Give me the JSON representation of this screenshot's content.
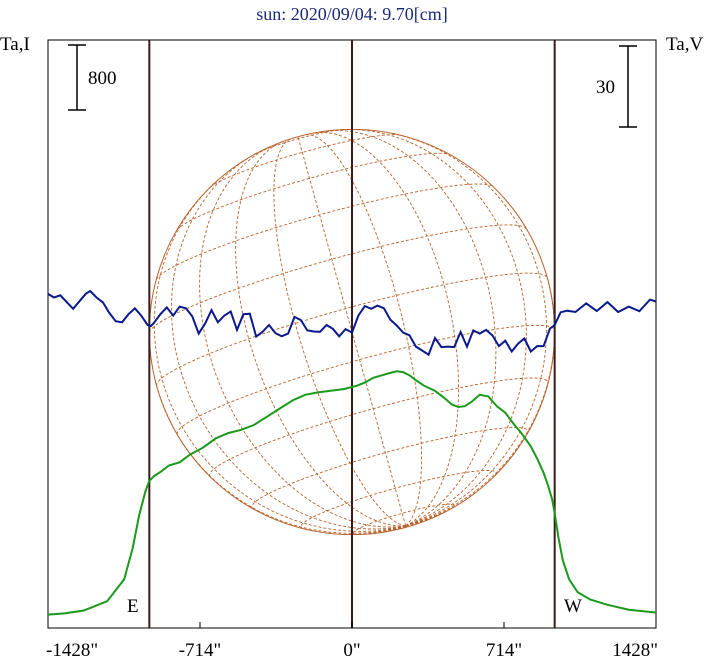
{
  "chart_data": {
    "type": "line",
    "title": "sun: 2020/09/04: 9.70[cm]",
    "y_left_label": "Ta,I",
    "y_right_label": "Ta,V",
    "left_scale_bar": "800",
    "right_scale_bar": "30",
    "east_label": "E",
    "west_label": "W",
    "xlim": [
      -1428,
      1428
    ],
    "x_ticks": [
      {
        "value": -1428,
        "label": "-1428\""
      },
      {
        "value": -714,
        "label": "-714\""
      },
      {
        "value": 0,
        "label": "0\""
      },
      {
        "value": 714,
        "label": "714\""
      },
      {
        "value": 1428,
        "label": "1428\""
      }
    ],
    "limb_markers": [
      -952,
      0,
      952
    ],
    "solar_disk_radius": 952,
    "colors": {
      "intensity": "#1a9a1a",
      "polarization": "#0a1a8c",
      "disk": "#b8622a",
      "markers": "#3a1a1a",
      "title": "#1a2a7a"
    },
    "series": [
      {
        "name": "",
        "axis": "left",
        "x": [
          -1428,
          -1350,
          -1260,
          -1150,
          -1070,
          -1030,
          -1000,
          -970,
          -952,
          -930,
          -900,
          -860,
          -810,
          -760,
          -700,
          -640,
          -580,
          -520,
          -460,
          -400,
          -340,
          -280,
          -220,
          -160,
          -100,
          -40,
          20,
          60,
          100,
          140,
          180,
          210,
          240,
          270,
          300,
          340,
          390,
          430,
          470,
          500,
          530,
          560,
          600,
          640,
          680,
          720,
          760,
          800,
          840,
          870,
          900,
          920,
          940,
          952,
          970,
          990,
          1020,
          1060,
          1120,
          1200,
          1300,
          1428
        ],
        "y": [
          10,
          40,
          110,
          340,
          880,
          1650,
          2450,
          3050,
          3300,
          3420,
          3520,
          3680,
          3760,
          3950,
          4120,
          4350,
          4480,
          4560,
          4680,
          4880,
          5080,
          5280,
          5420,
          5480,
          5520,
          5560,
          5640,
          5720,
          5840,
          5900,
          5960,
          6000,
          5980,
          5900,
          5780,
          5640,
          5520,
          5360,
          5180,
          5120,
          5140,
          5240,
          5420,
          5380,
          5140,
          4980,
          4700,
          4450,
          4150,
          3850,
          3500,
          3200,
          2850,
          2500,
          1900,
          1350,
          880,
          560,
          380,
          250,
          130,
          60
        ]
      },
      {
        "name": "",
        "axis": "right",
        "x": [
          -1428,
          -1400,
          -1370,
          -1340,
          -1310,
          -1280,
          -1250,
          -1230,
          -1200,
          -1170,
          -1140,
          -1110,
          -1080,
          -1050,
          -1020,
          -990,
          -960,
          -945,
          -930,
          -900,
          -870,
          -840,
          -810,
          -780,
          -750,
          -720,
          -690,
          -660,
          -630,
          -600,
          -570,
          -540,
          -510,
          -480,
          -450,
          -420,
          -390,
          -360,
          -330,
          -300,
          -270,
          -240,
          -210,
          -180,
          -150,
          -120,
          -90,
          -60,
          -30,
          0,
          30,
          60,
          90,
          120,
          150,
          180,
          210,
          240,
          270,
          300,
          330,
          360,
          390,
          420,
          450,
          480,
          510,
          540,
          570,
          600,
          630,
          660,
          690,
          720,
          750,
          780,
          810,
          840,
          870,
          900,
          930,
          952,
          980,
          1010,
          1050,
          1100,
          1150,
          1200,
          1250,
          1300,
          1350,
          1400,
          1428
        ],
        "y": [
          1.5,
          0.2,
          1.0,
          -1.5,
          -4.0,
          -1.2,
          1.6,
          2.6,
          0.2,
          -1.6,
          -5.5,
          -8.6,
          -9.0,
          -6.0,
          -3.8,
          -6.5,
          -10.0,
          -10.4,
          -9.2,
          -6.0,
          -3.5,
          -6.5,
          -3.2,
          -3.8,
          -6.8,
          -13.2,
          -9.5,
          -4.5,
          -9.0,
          -6.5,
          -5.0,
          -11.8,
          -6.0,
          -5.8,
          -14.3,
          -12.5,
          -10.0,
          -13.0,
          -14.2,
          -13.2,
          -7.0,
          -8.2,
          -12.0,
          -12.4,
          -12.5,
          -10.0,
          -11.4,
          -14.2,
          -11.5,
          -12.8,
          -6.5,
          -3.0,
          -4.0,
          -2.8,
          -3.8,
          -8.0,
          -10.2,
          -12.8,
          -13.8,
          -18.0,
          -19.5,
          -21.0,
          -14.8,
          -18.2,
          -18.0,
          -18.2,
          -12.6,
          -18.0,
          -12.0,
          -13.2,
          -11.8,
          -13.9,
          -17.8,
          -15.8,
          -19.8,
          -16.9,
          -15.0,
          -19.8,
          -17.8,
          -17.8,
          -11.3,
          -10.0,
          -5.3,
          -4.7,
          -5.2,
          -2.0,
          -4.8,
          -1.5,
          -5.2,
          -3.2,
          -4.9,
          -0.6,
          -1.3
        ]
      }
    ]
  }
}
